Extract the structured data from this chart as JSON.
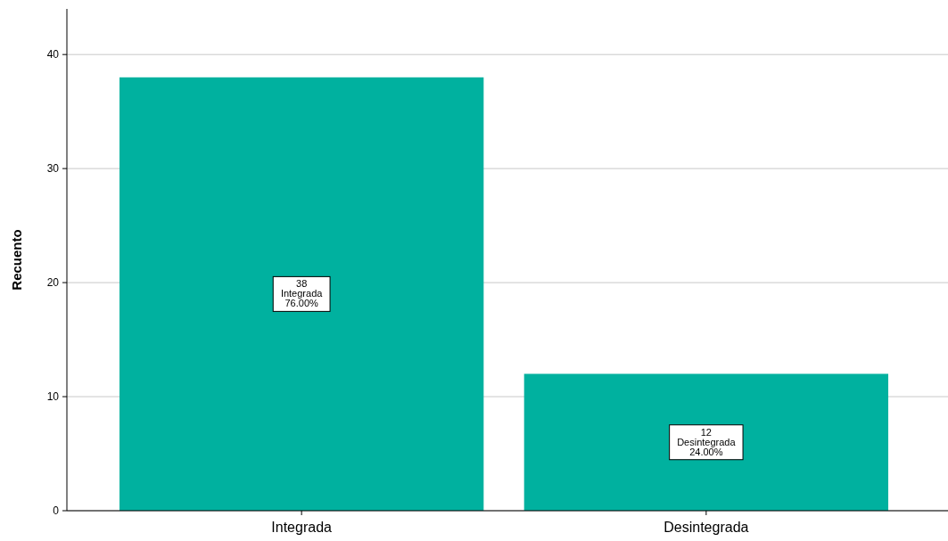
{
  "chart_data": {
    "type": "bar",
    "ylabel": "Recuento",
    "categories": [
      "Integrada",
      "Desintegrada"
    ],
    "values": [
      38,
      12
    ],
    "color": "#00b19f",
    "ylim": [
      0,
      44
    ],
    "yticks": [
      0,
      10,
      20,
      30,
      40
    ],
    "grid": "y",
    "value_labels": [
      "38\nIntegrada\n76.00%",
      "12\nDesintegrada\n24.00%"
    ]
  }
}
